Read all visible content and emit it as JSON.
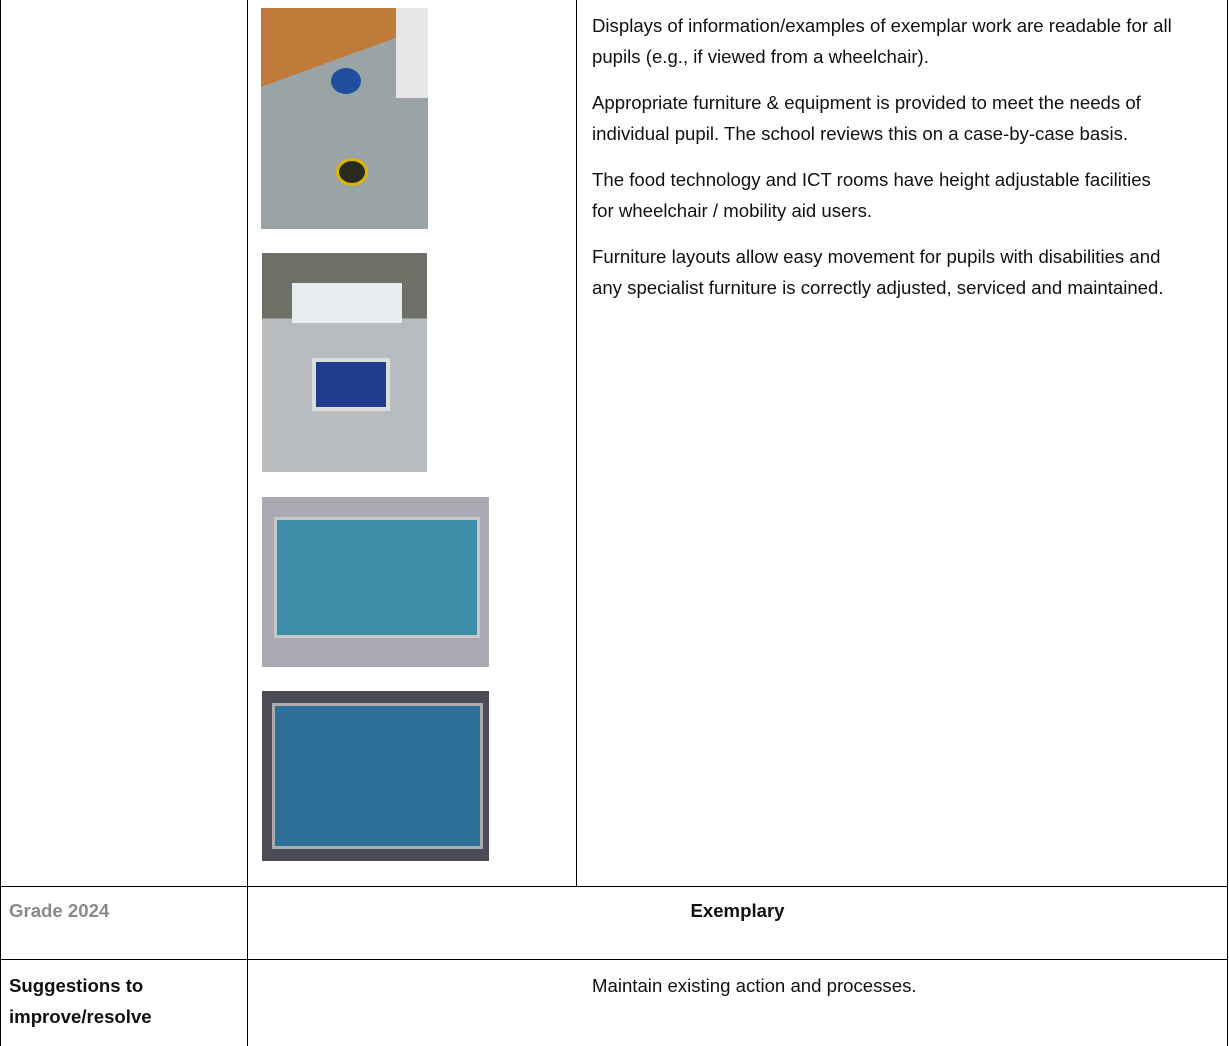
{
  "evidence": {
    "paragraphs": [
      "Displays of information/examples of exemplar work are readable for all pupils (e.g., if viewed from a wheelchair).",
      "Appropriate furniture & equipment is provided to meet the needs of individual pupil. The school reviews this on a case-by-case basis.",
      "The food technology and ICT rooms have height adjustable facilities for wheelchair / mobility aid users.",
      "Furniture layouts allow easy movement for pupils with disabilities and any specialist furniture is correctly adjusted, serviced and maintained."
    ]
  },
  "grade": {
    "label": "Grade 2024",
    "value": "Exemplary"
  },
  "suggestions": {
    "label": "Suggestions to improve/resolve",
    "value": "Maintain existing action and processes."
  }
}
